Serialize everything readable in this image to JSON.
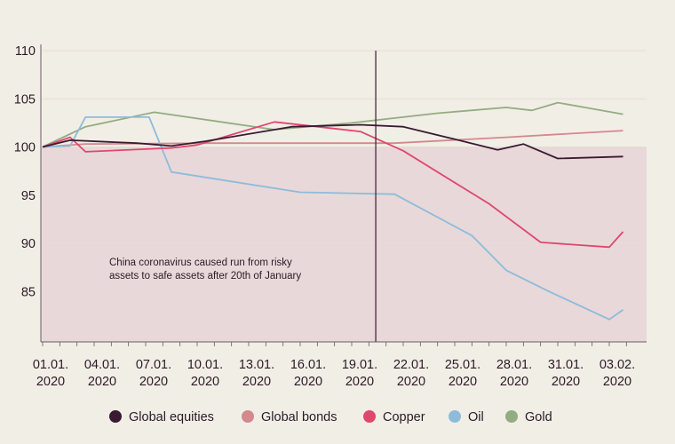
{
  "chart_data": {
    "type": "line",
    "title": "",
    "xlabel": "",
    "ylabel": "",
    "ylim": [
      80,
      110
    ],
    "y_ticks": [
      85,
      90,
      95,
      100,
      105,
      110
    ],
    "x_ticks": [
      {
        "line1": "01.01.",
        "line2": "2020",
        "day": 0
      },
      {
        "line1": "04.01.",
        "line2": "2020",
        "day": 3
      },
      {
        "line1": "07.01.",
        "line2": "2020",
        "day": 6
      },
      {
        "line1": "10.01.",
        "line2": "2020",
        "day": 9
      },
      {
        "line1": "13.01.",
        "line2": "2020",
        "day": 12
      },
      {
        "line1": "16.01.",
        "line2": "2020",
        "day": 15
      },
      {
        "line1": "19.01.",
        "line2": "2020",
        "day": 18
      },
      {
        "line1": "22.01.",
        "line2": "2020",
        "day": 21
      },
      {
        "line1": "25.01.",
        "line2": "2020",
        "day": 24
      },
      {
        "line1": "28.01.",
        "line2": "2020",
        "day": 27
      },
      {
        "line1": "31.01.",
        "line2": "2020",
        "day": 30
      },
      {
        "line1": "03.02.",
        "line2": "2020",
        "day": 33
      }
    ],
    "x_range_days": [
      0,
      34.5
    ],
    "event_line_day": 19.4,
    "shaded_below": 100,
    "grid": "horizontal",
    "legend_position": "bottom",
    "annotation": [
      "China coronavirus caused run from risky",
      "assets to safe assets after 20th of January"
    ],
    "series": [
      {
        "name": "Global equities",
        "color": "#3a1a33",
        "points": [
          [
            0,
            100
          ],
          [
            1.6,
            100.7
          ],
          [
            5.5,
            100.4
          ],
          [
            7.5,
            100.1
          ],
          [
            9.5,
            100.6
          ],
          [
            14.5,
            102.1
          ],
          [
            18.5,
            102.3
          ],
          [
            21,
            102.1
          ],
          [
            24,
            100.8
          ],
          [
            26.5,
            99.7
          ],
          [
            28,
            100.3
          ],
          [
            30,
            98.8
          ],
          [
            33.8,
            99.0
          ]
        ]
      },
      {
        "name": "Global bonds",
        "color": "#d3898d",
        "points": [
          [
            0,
            100
          ],
          [
            2.5,
            100.3
          ],
          [
            10,
            100.4
          ],
          [
            18,
            100.4
          ],
          [
            20.5,
            100.4
          ],
          [
            27,
            101.0
          ],
          [
            33.8,
            101.7
          ]
        ]
      },
      {
        "name": "Copper",
        "color": "#e0476d",
        "points": [
          [
            0,
            100
          ],
          [
            1.6,
            101
          ],
          [
            2.5,
            99.5
          ],
          [
            7.5,
            99.9
          ],
          [
            9,
            100.2
          ],
          [
            13.5,
            102.6
          ],
          [
            18.5,
            101.6
          ],
          [
            21,
            99.6
          ],
          [
            26,
            94.1
          ],
          [
            29,
            90.1
          ],
          [
            33,
            89.6
          ],
          [
            33.8,
            91.2
          ]
        ]
      },
      {
        "name": "Oil",
        "color": "#8dbcdb",
        "points": [
          [
            0,
            100
          ],
          [
            1.6,
            100.1
          ],
          [
            2.5,
            103.1
          ],
          [
            6.2,
            103.1
          ],
          [
            7.5,
            97.4
          ],
          [
            15,
            95.3
          ],
          [
            20.5,
            95.1
          ],
          [
            25,
            90.8
          ],
          [
            27,
            87.2
          ],
          [
            29.5,
            85.0
          ],
          [
            33,
            82.1
          ],
          [
            33.8,
            83.1
          ]
        ]
      },
      {
        "name": "Gold",
        "color": "#94ac82",
        "points": [
          [
            0,
            100
          ],
          [
            2.5,
            102.1
          ],
          [
            6.5,
            103.6
          ],
          [
            13.5,
            101.8
          ],
          [
            18,
            102.5
          ],
          [
            23,
            103.5
          ],
          [
            27,
            104.1
          ],
          [
            28.5,
            103.8
          ],
          [
            30,
            104.6
          ],
          [
            33.8,
            103.4
          ]
        ]
      }
    ]
  },
  "colors": {
    "background": "#f1eee6",
    "shaded_region": "#e8d8d9",
    "grid": "#e3ded4",
    "axis": "#6b5b67",
    "event_line": "#3a1a33",
    "text": "#2b1a27"
  }
}
